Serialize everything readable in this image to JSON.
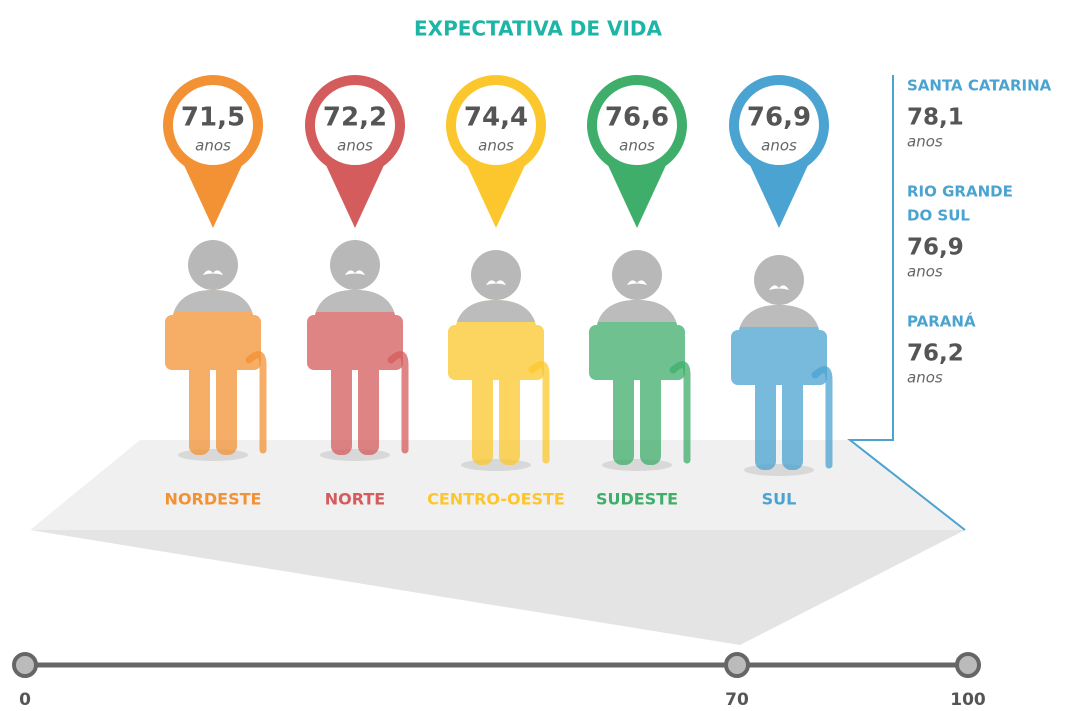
{
  "title": "EXPECTATIVA DE VIDA",
  "regions": [
    {
      "name": "NORDESTE",
      "value": "71,5",
      "unit": "anos",
      "color": "#f39234"
    },
    {
      "name": "NORTE",
      "value": "72,2",
      "unit": "anos",
      "color": "#d45c5c"
    },
    {
      "name": "CENTRO-OESTE",
      "value": "74,4",
      "unit": "anos",
      "color": "#fcc72c"
    },
    {
      "name": "SUDESTE",
      "value": "76,6",
      "unit": "anos",
      "color": "#3fae6a"
    },
    {
      "name": "SUL",
      "value": "76,9",
      "unit": "anos",
      "color": "#4aa3d0"
    }
  ],
  "states": [
    {
      "name": [
        "SANTA CATARINA"
      ],
      "value": "78,1",
      "unit": "anos"
    },
    {
      "name": [
        "RIO GRANDE",
        "DO SUL"
      ],
      "value": "76,9",
      "unit": "anos"
    },
    {
      "name": [
        "PARANÁ"
      ],
      "value": "76,2",
      "unit": "anos"
    }
  ],
  "scale": [
    "0",
    "70",
    "100"
  ]
}
